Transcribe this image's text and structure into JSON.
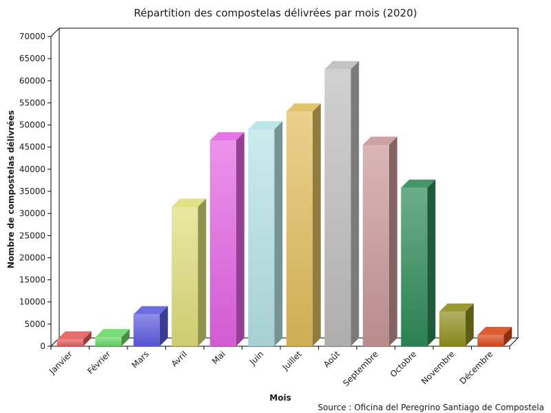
{
  "chart_data": {
    "type": "bar",
    "title": "Répartition des compostelas délivrées par mois (2020)",
    "xlabel": "Mois",
    "ylabel": "Nombre de compostelas délivrées",
    "source": "Source : Oficina del Peregrino Santiago de Compostela",
    "ylim": [
      0,
      70000
    ],
    "yticks": [
      0,
      5000,
      10000,
      15000,
      20000,
      25000,
      30000,
      35000,
      40000,
      45000,
      50000,
      55000,
      60000,
      65000,
      70000
    ],
    "categories": [
      "Janvier",
      "Février",
      "Mars",
      "Avril",
      "Mai",
      "Juin",
      "Juillet",
      "Août",
      "Septembre",
      "Octobre",
      "Novembre",
      "Décembre"
    ],
    "values": [
      1500,
      2000,
      7200,
      31500,
      46500,
      49000,
      53000,
      62600,
      45500,
      35800,
      7800,
      2500
    ],
    "colors": [
      "#e65c5c",
      "#66d966",
      "#5c5ce0",
      "#dede7a",
      "#e463e4",
      "#b5e2e5",
      "#e0bd5c",
      "#bdbdbd",
      "#c99799",
      "#2e8b57",
      "#8f8f1f",
      "#d94a1a"
    ],
    "grid": false,
    "legend": "none"
  }
}
